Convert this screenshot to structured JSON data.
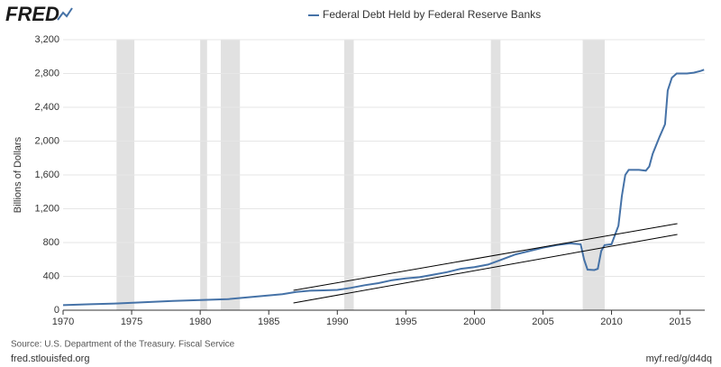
{
  "logo": "FRED",
  "chart_data": {
    "type": "line",
    "title": "Federal Debt Held by Federal Reserve Banks",
    "ylabel": "Billions of Dollars",
    "source": "Source: U.S. Department of the Treasury. Fiscal Service",
    "site": "fred.stlouisfed.org",
    "short_url": "myf.red/g/d4dq",
    "x": [
      1970,
      1972,
      1974,
      1976,
      1978,
      1980,
      1982,
      1984,
      1986,
      1987,
      1988,
      1989,
      1990,
      1991,
      1992,
      1993,
      1994,
      1995,
      1996,
      1997,
      1998,
      1999,
      2000,
      2001,
      2002,
      2003,
      2004,
      2005,
      2006,
      2007,
      2007.75,
      2008,
      2008.25,
      2008.75,
      2009,
      2009.25,
      2009.5,
      2010,
      2010.5,
      2010.75,
      2011,
      2011.25,
      2012,
      2012.5,
      2012.75,
      2013,
      2013.5,
      2013.9,
      2014.1,
      2014.4,
      2014.75,
      2015.5,
      2016,
      2016.5,
      2016.75
    ],
    "series": [
      {
        "name": "Federal Debt Held by Federal Reserve Banks",
        "color": "#4572a7",
        "values": [
          60,
          70,
          80,
          95,
          110,
          120,
          130,
          160,
          190,
          215,
          230,
          235,
          240,
          265,
          295,
          320,
          355,
          375,
          390,
          420,
          450,
          490,
          510,
          540,
          600,
          660,
          700,
          740,
          770,
          790,
          780,
          600,
          480,
          475,
          490,
          700,
          770,
          780,
          1000,
          1350,
          1600,
          1660,
          1660,
          1650,
          1700,
          1850,
          2050,
          2200,
          2600,
          2750,
          2800,
          2800,
          2810,
          2830,
          2845
        ]
      }
    ],
    "trend_lines": [
      {
        "color": "#000000",
        "x": [
          1986.8,
          2014.8
        ],
        "values": [
          235,
          1024
        ]
      },
      {
        "color": "#000000",
        "x": [
          1986.8,
          2014.8
        ],
        "values": [
          85,
          896
        ]
      }
    ],
    "recessions": [
      [
        1973.9,
        1975.2
      ],
      [
        1980.0,
        1980.5
      ],
      [
        1981.5,
        1982.9
      ],
      [
        1990.5,
        1991.2
      ],
      [
        2001.2,
        2001.9
      ],
      [
        2007.9,
        2009.5
      ]
    ],
    "recession_color": "#e1e1e1",
    "xlim": [
      1970,
      2016.8
    ],
    "xticks": [
      1970,
      1975,
      1980,
      1985,
      1990,
      1995,
      2000,
      2005,
      2010,
      2015
    ],
    "ylim": [
      0,
      3200
    ],
    "yticks": [
      0,
      400,
      800,
      {
        "value": 1200,
        "label": "1,200"
      },
      {
        "value": 1600,
        "label": "1,600"
      },
      {
        "value": 2000,
        "label": "2,000"
      },
      {
        "value": 2400,
        "label": "2,400"
      },
      {
        "value": 2800,
        "label": "2,800"
      },
      {
        "value": 3200,
        "label": "3,200"
      }
    ],
    "grid": true
  }
}
